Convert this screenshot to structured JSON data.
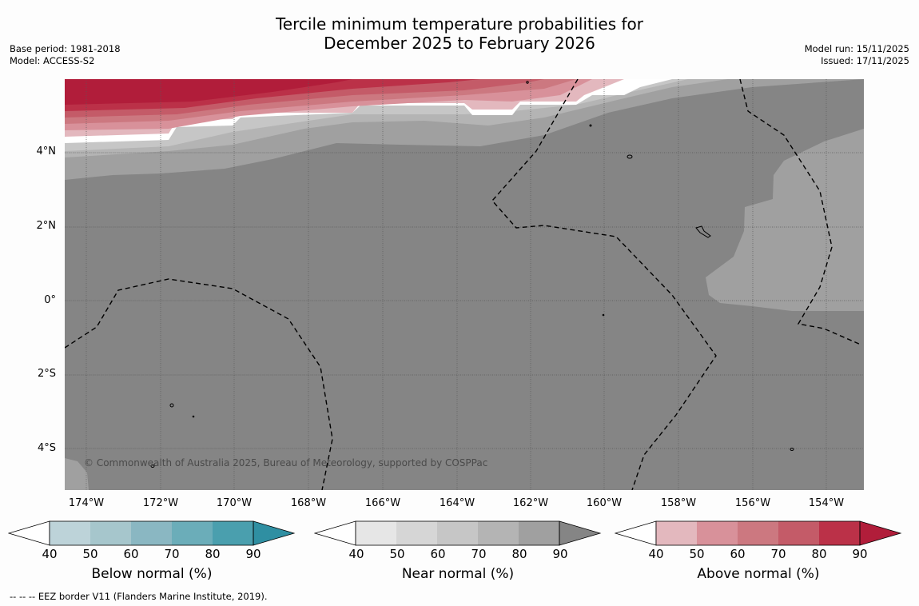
{
  "title_line1": "Tercile minimum temperature probabilities for",
  "title_line2": "December 2025 to February 2026",
  "base_period": "Base period: 1981-2018",
  "model": "Model: ACCESS-S2",
  "model_run": "Model run: 15/11/2025",
  "issued": "Issued: 17/11/2025",
  "lat_ticks": [
    "4°N",
    "2°N",
    "0°",
    "2°S",
    "4°S"
  ],
  "lon_ticks": [
    "174°W",
    "172°W",
    "170°W",
    "168°W",
    "166°W",
    "164°W",
    "162°W",
    "160°W",
    "158°W",
    "156°W",
    "154°W"
  ],
  "copyright": "© Commonwealth of Australia 2025, Bureau of Meteorology, supported by COSPPac",
  "colorbars": [
    {
      "label": "Below normal (%)",
      "ticks": [
        "40",
        "50",
        "60",
        "70",
        "80",
        "90"
      ],
      "colors": [
        "#ffffff",
        "#bdd3d9",
        "#a6c6cc",
        "#8ab7c2",
        "#6badb9",
        "#4a9fae",
        "#2f8fa2"
      ]
    },
    {
      "label": "Near normal (%)",
      "ticks": [
        "40",
        "50",
        "60",
        "70",
        "80",
        "90"
      ],
      "colors": [
        "#ffffff",
        "#e6e6e6",
        "#d6d6d6",
        "#c6c6c6",
        "#b4b4b4",
        "#a0a0a0",
        "#858585"
      ]
    },
    {
      "label": "Above normal (%)",
      "ticks": [
        "40",
        "50",
        "60",
        "70",
        "80",
        "90"
      ],
      "colors": [
        "#ffffff",
        "#e3b8be",
        "#d8919a",
        "#cc7880",
        "#c45b68",
        "#bb3148",
        "#b11d3a"
      ]
    }
  ],
  "footnote": "--  --  -- EEZ border V11 (Flanders Marine Institute, 2019)."
}
